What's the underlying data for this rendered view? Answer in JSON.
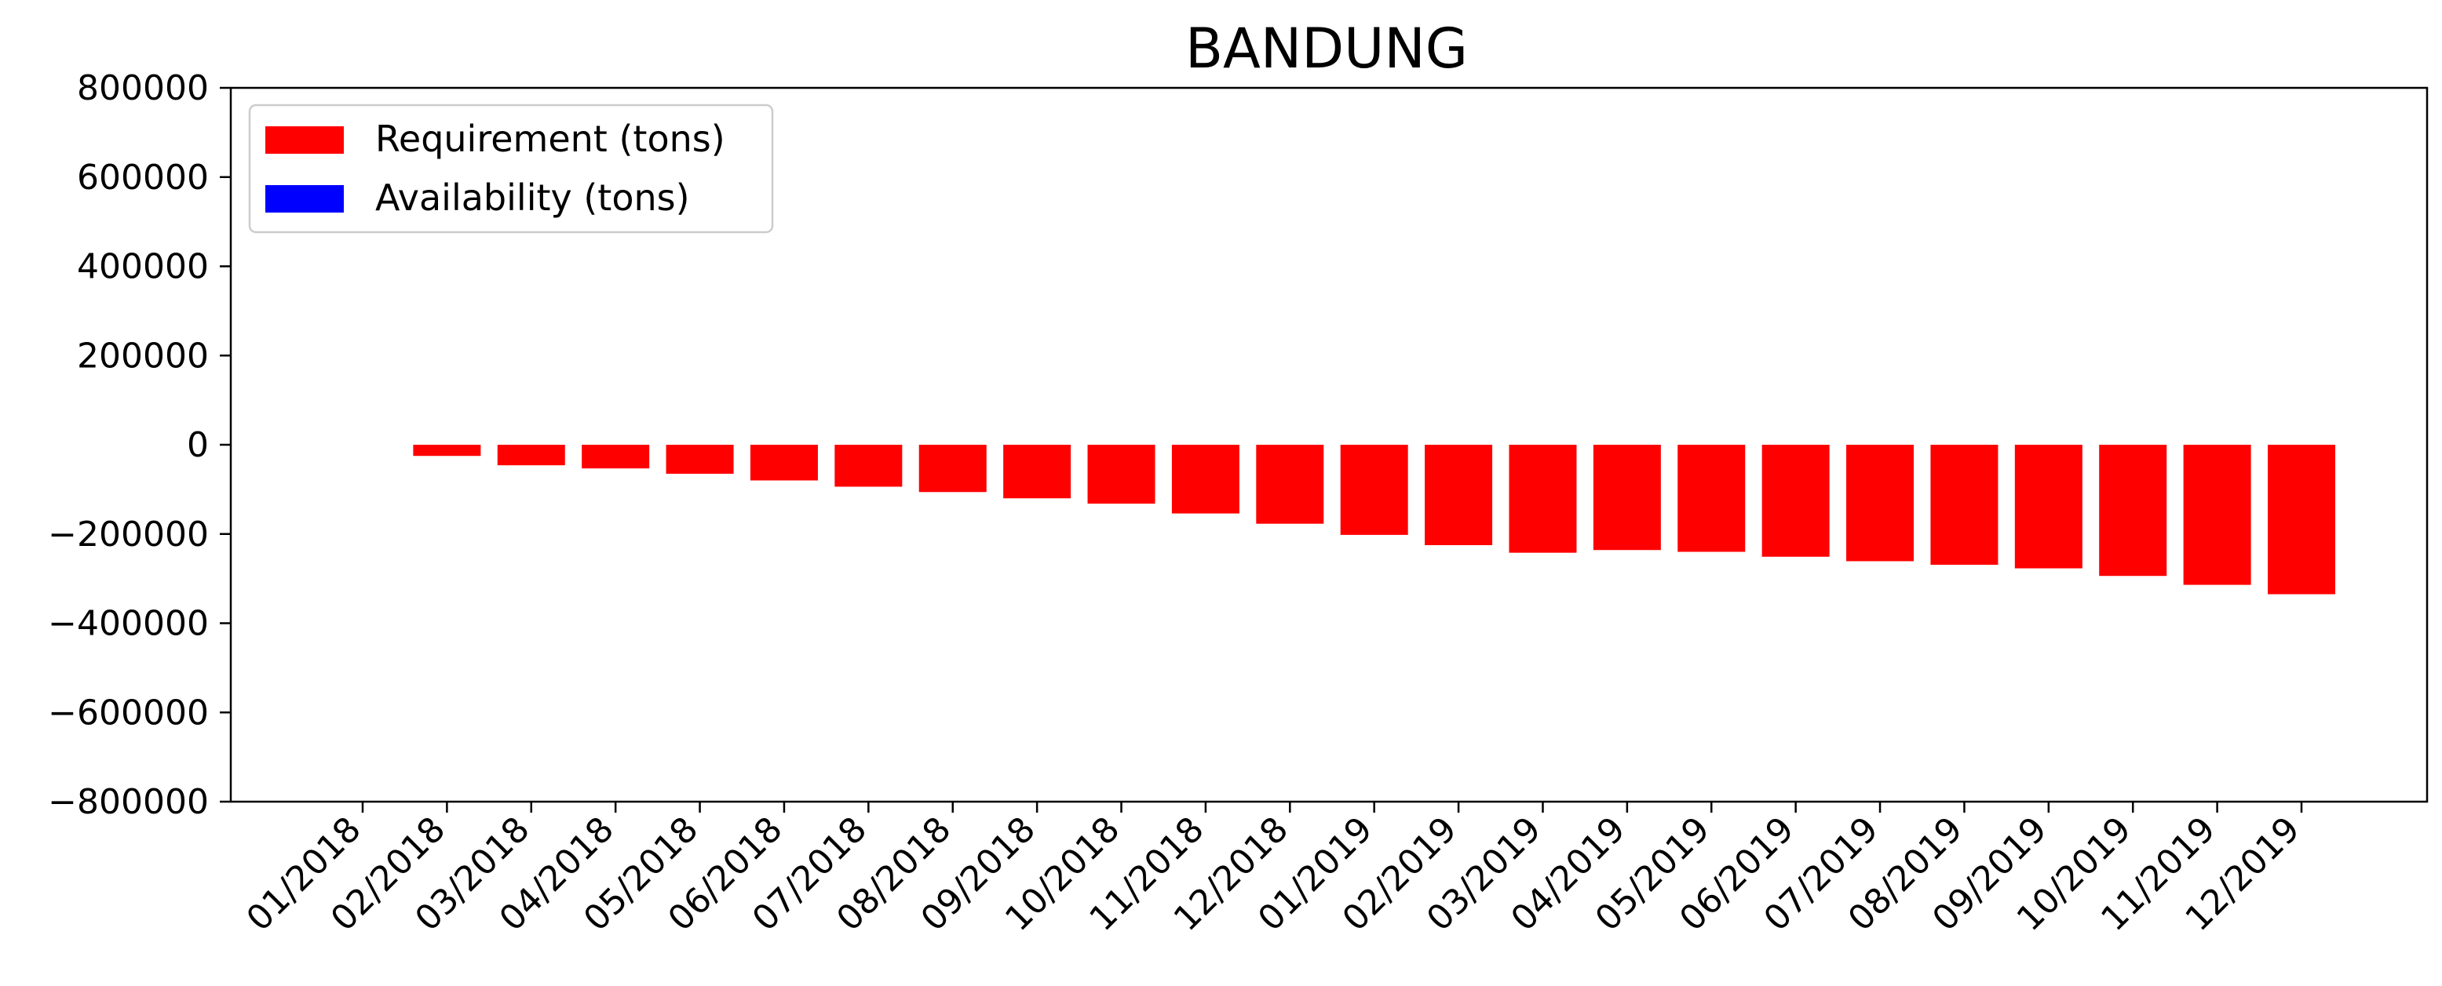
{
  "chart_data": {
    "type": "bar",
    "title": "BANDUNG",
    "xlabel": "",
    "ylabel": "",
    "ylim": [
      -800000,
      800000
    ],
    "yticks": [
      800000,
      600000,
      400000,
      200000,
      0,
      -200000,
      -400000,
      -600000,
      -800000
    ],
    "ytick_labels": [
      "800000",
      "600000",
      "400000",
      "200000",
      "0",
      "−200000",
      "−400000",
      "−600000",
      "−800000"
    ],
    "categories": [
      "01/2018",
      "02/2018",
      "03/2018",
      "04/2018",
      "05/2018",
      "06/2018",
      "07/2018",
      "08/2018",
      "09/2018",
      "10/2018",
      "11/2018",
      "12/2018",
      "01/2019",
      "02/2019",
      "03/2019",
      "04/2019",
      "05/2019",
      "06/2019",
      "07/2019",
      "08/2019",
      "09/2019",
      "10/2019",
      "11/2019",
      "12/2019"
    ],
    "legend_position": "top-left",
    "series": [
      {
        "name": "Requirement (tons)",
        "color": "#ff0000",
        "values": [
          null,
          -25000,
          -46000,
          -53000,
          -65000,
          -80000,
          -94000,
          -106000,
          -120000,
          -132000,
          -154000,
          -177000,
          -202000,
          -225000,
          -242000,
          -236000,
          -240000,
          -251000,
          -261000,
          -269000,
          -277000,
          -294000,
          -314000,
          -335000
        ]
      },
      {
        "name": "Availability (tons)",
        "color": "#0000ff",
        "values": [
          null,
          null,
          null,
          null,
          null,
          null,
          null,
          null,
          null,
          null,
          null,
          null,
          null,
          null,
          null,
          null,
          null,
          null,
          null,
          null,
          null,
          null,
          null,
          null
        ]
      }
    ]
  }
}
